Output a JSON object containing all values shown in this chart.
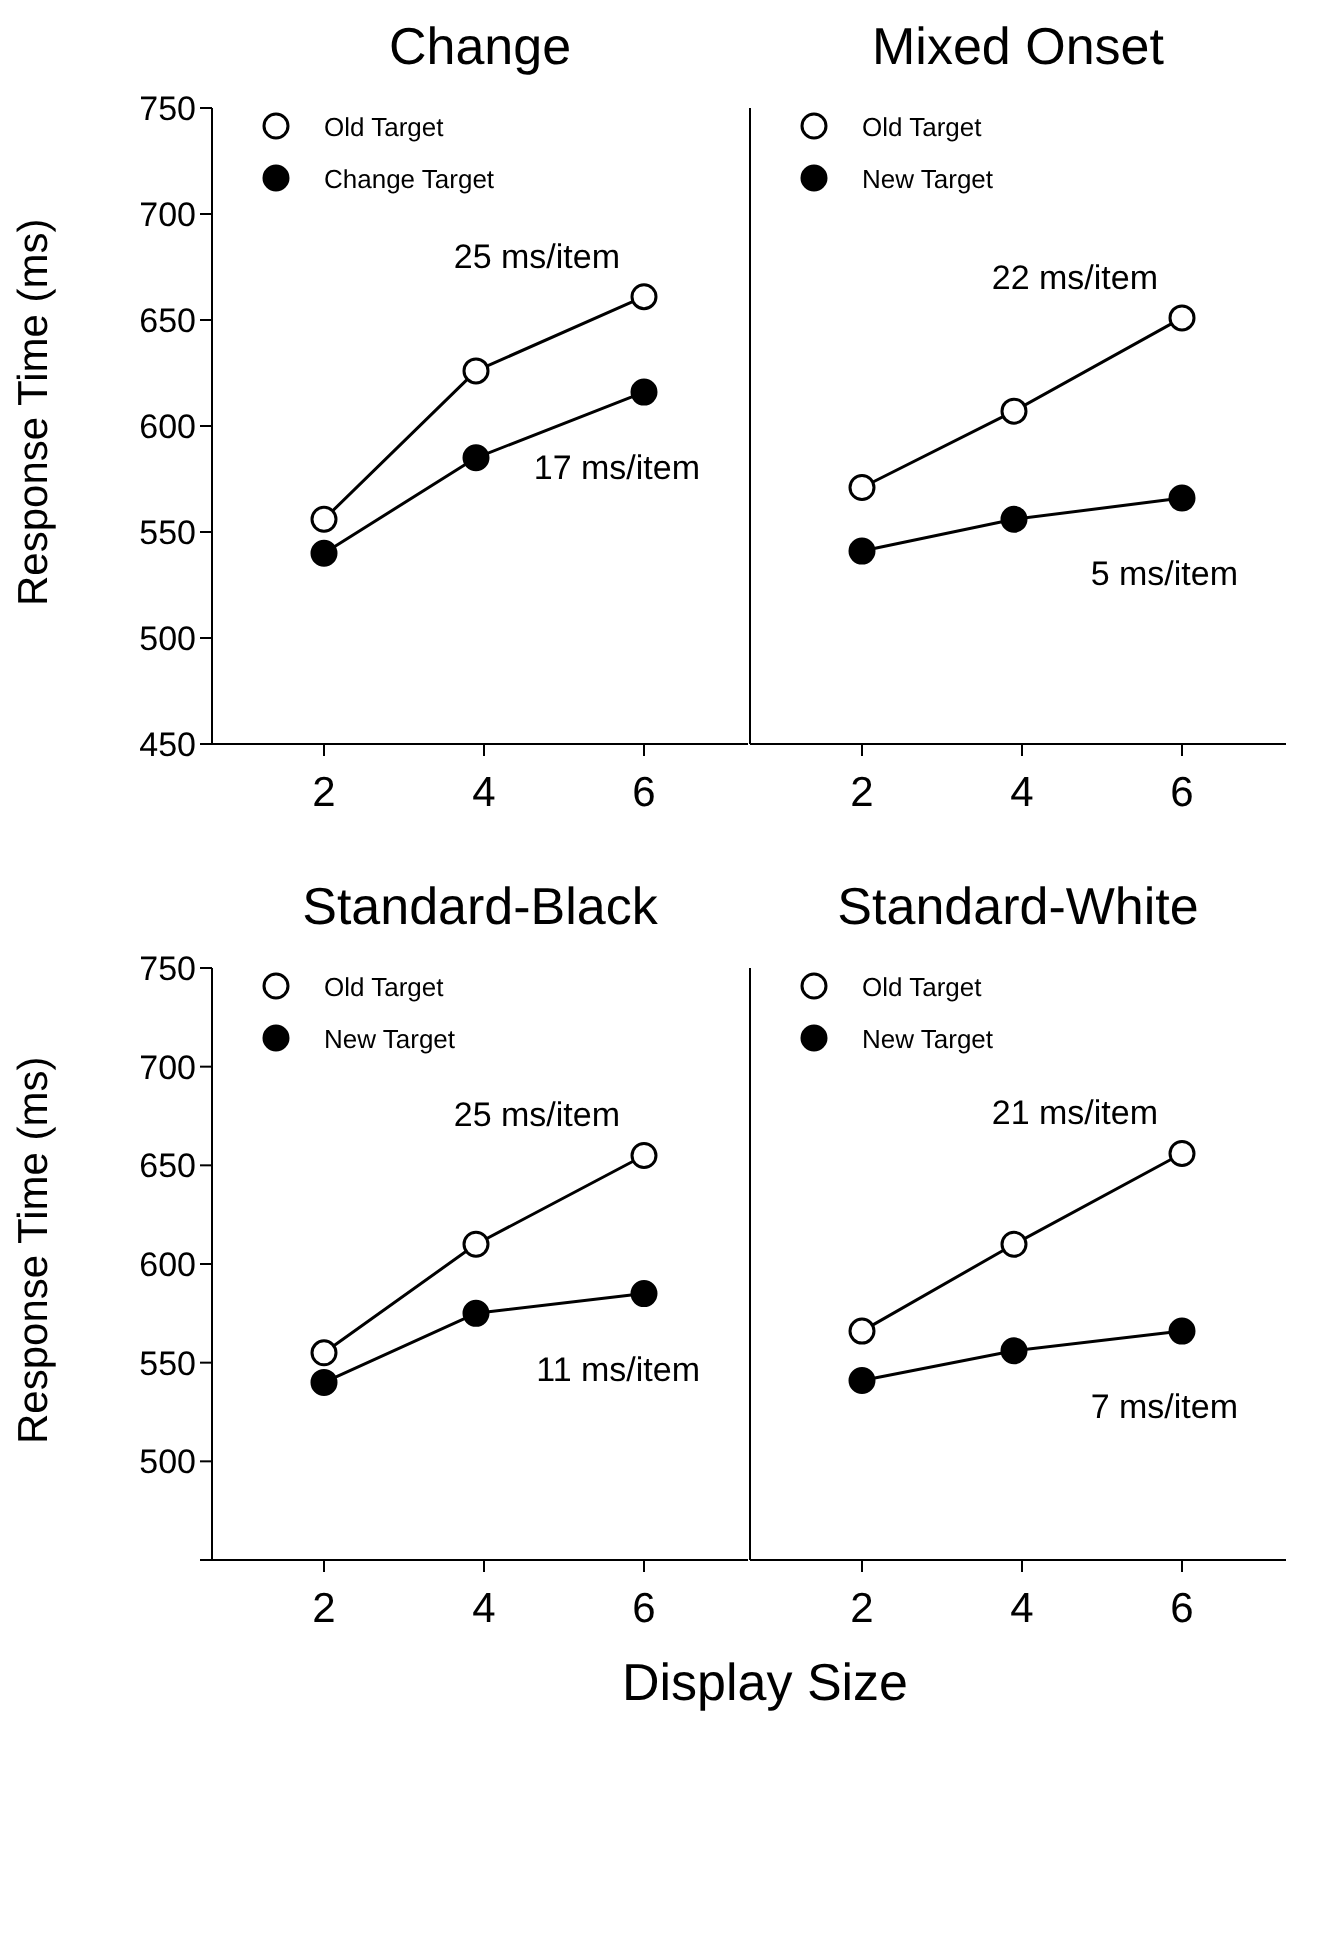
{
  "chart_data": [
    {
      "type": "line",
      "title": "Change",
      "ylabel": "Response Time (ms)",
      "x": [
        2,
        3.9,
        6
      ],
      "xlim": [
        0.6,
        7.3
      ],
      "xticks": [
        2,
        4,
        6
      ],
      "ylim": [
        450,
        750
      ],
      "yticks": [
        450,
        500,
        550,
        600,
        650,
        700,
        750
      ],
      "marker": "circle",
      "legend": "top left",
      "series": [
        {
          "name": "Old Target",
          "color": "#ffffff",
          "values": [
            556,
            626,
            661
          ]
        },
        {
          "name": "Change Target",
          "color": "#000000",
          "values": [
            540,
            585,
            616
          ]
        }
      ],
      "annotations": [
        "25 ms/item",
        "17 ms/item"
      ]
    },
    {
      "type": "line",
      "title": "Mixed Onset",
      "x": [
        2,
        3.9,
        6
      ],
      "xlim": [
        0.6,
        7.3
      ],
      "xticks": [
        2,
        4,
        6
      ],
      "ylim": [
        450,
        750
      ],
      "yticks": [
        450,
        500,
        550,
        600,
        650,
        700,
        750
      ],
      "tick_labels": "x",
      "marker": "circle",
      "legend": "top left",
      "series": [
        {
          "name": "Old Target",
          "color": "#ffffff",
          "values": [
            571,
            607,
            651
          ]
        },
        {
          "name": "New Target",
          "color": "#000000",
          "values": [
            541,
            556,
            566
          ]
        }
      ],
      "annotations": [
        "22 ms/item",
        "5 ms/item"
      ]
    },
    {
      "type": "line",
      "title": "Standard-Black",
      "ylabel": "Response Time (ms)",
      "xlabel": "Display Size",
      "x": [
        2,
        3.9,
        6
      ],
      "xlim": [
        0.6,
        7.3
      ],
      "xticks": [
        2,
        4,
        6
      ],
      "ylim": [
        450,
        750
      ],
      "yticks": [
        {
          "value": 450,
          "label": null
        },
        500,
        550,
        600,
        650,
        700,
        750
      ],
      "marker": "circle",
      "legend": "top left",
      "series": [
        {
          "name": "Old Target",
          "color": "#ffffff",
          "values": [
            555,
            610,
            655
          ]
        },
        {
          "name": "New Target",
          "color": "#000000",
          "values": [
            540,
            575,
            585
          ]
        }
      ],
      "annotations": [
        "25 ms/item",
        "11 ms/item"
      ]
    },
    {
      "type": "line",
      "title": "Standard-White",
      "x": [
        2,
        3.9,
        6
      ],
      "xlim": [
        0.6,
        7.3
      ],
      "xticks": [
        2,
        4,
        6
      ],
      "ylim": [
        450,
        750
      ],
      "yticks": [
        {
          "value": 450,
          "label": null
        },
        500,
        550,
        600,
        650,
        700,
        750
      ],
      "tick_labels": "x",
      "marker": "circle",
      "legend": "top left",
      "series": [
        {
          "name": "Old Target",
          "color": "#ffffff",
          "values": [
            566,
            610,
            656
          ]
        },
        {
          "name": "New Target",
          "color": "#000000",
          "values": [
            541,
            556,
            566
          ]
        }
      ],
      "annotations": [
        "21 ms/item",
        "7 ms/item"
      ]
    }
  ]
}
